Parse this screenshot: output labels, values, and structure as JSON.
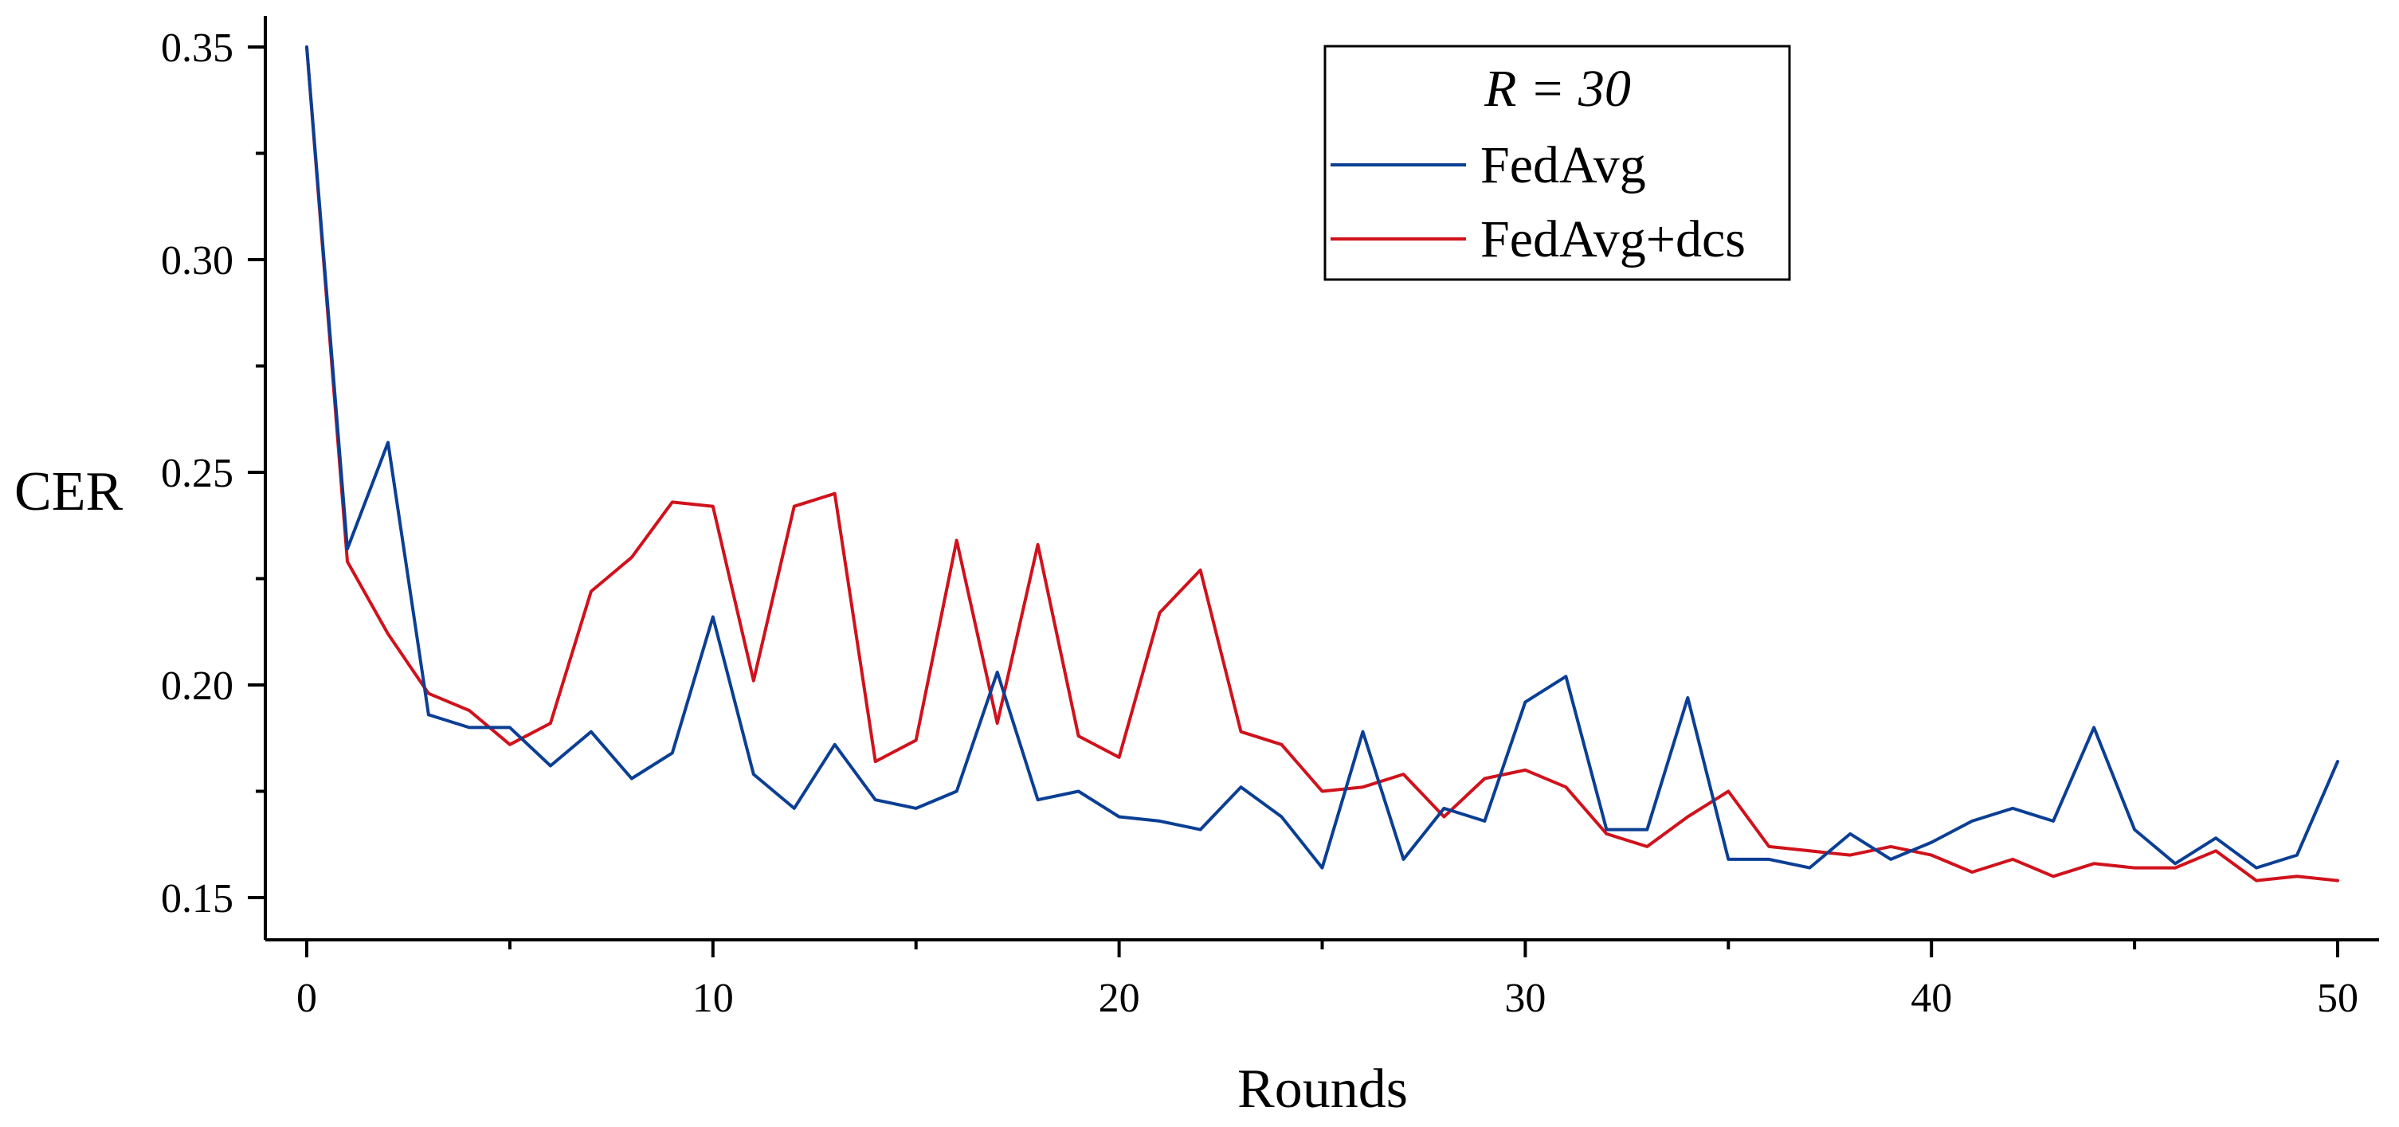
{
  "chart_data": {
    "type": "line",
    "title": "",
    "xlabel": "Rounds",
    "ylabel": "CER",
    "xlim": [
      -1,
      51
    ],
    "ylim": [
      0.14,
      0.35
    ],
    "grid": false,
    "legend_position": "top-right",
    "legend_title": "R = 30",
    "x_ticks": [
      0,
      10,
      20,
      30,
      40,
      50
    ],
    "x_tick_labels": [
      "0",
      "10",
      "20",
      "30",
      "40",
      "50"
    ],
    "y_ticks": [
      0.15,
      0.2,
      0.25,
      0.3,
      0.35
    ],
    "y_tick_labels": [
      "0.15",
      "0.20",
      "0.25",
      "0.30",
      "0.35"
    ],
    "x": [
      0,
      1,
      2,
      3,
      4,
      5,
      6,
      7,
      8,
      9,
      10,
      11,
      12,
      13,
      14,
      15,
      16,
      17,
      18,
      19,
      20,
      21,
      22,
      23,
      24,
      25,
      26,
      27,
      28,
      29,
      30,
      31,
      32,
      33,
      34,
      35,
      36,
      37,
      38,
      39,
      40,
      41,
      42,
      43,
      44,
      45,
      46,
      47,
      48,
      49,
      50
    ],
    "series": [
      {
        "name": "FedAvg",
        "color": "#0b3f94",
        "values": [
          0.35,
          0.232,
          0.257,
          0.193,
          0.19,
          0.19,
          0.181,
          0.189,
          0.178,
          0.184,
          0.216,
          0.179,
          0.171,
          0.186,
          0.173,
          0.171,
          0.175,
          0.203,
          0.173,
          0.175,
          0.169,
          0.168,
          0.166,
          0.176,
          0.169,
          0.157,
          0.189,
          0.159,
          0.171,
          0.168,
          0.196,
          0.202,
          0.166,
          0.166,
          0.197,
          0.159,
          0.159,
          0.157,
          0.165,
          0.159,
          0.163,
          0.168,
          0.171,
          0.168,
          0.19,
          0.166,
          0.158,
          0.164,
          0.157,
          0.16,
          0.182
        ]
      },
      {
        "name": "FedAvg+dcs",
        "color": "#d0121c",
        "values": [
          0.35,
          0.229,
          0.212,
          0.198,
          0.194,
          0.186,
          0.191,
          0.222,
          0.23,
          0.243,
          0.242,
          0.201,
          0.242,
          0.245,
          0.182,
          0.187,
          0.234,
          0.191,
          0.233,
          0.188,
          0.183,
          0.217,
          0.227,
          0.189,
          0.186,
          0.175,
          0.176,
          0.179,
          0.169,
          0.178,
          0.18,
          0.176,
          0.165,
          0.162,
          0.169,
          0.175,
          0.162,
          0.161,
          0.16,
          0.162,
          0.16,
          0.156,
          0.159,
          0.155,
          0.158,
          0.157,
          0.157,
          0.161,
          0.154,
          0.155,
          0.154
        ]
      }
    ]
  }
}
